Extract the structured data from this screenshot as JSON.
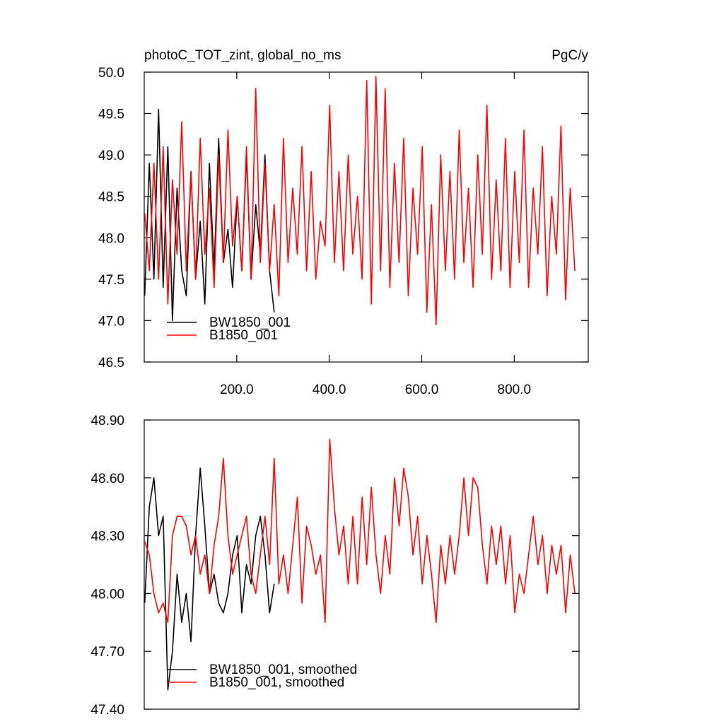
{
  "chart_data": [
    {
      "type": "line",
      "title": "photoC_TOT_zint, global_no_ms",
      "units_label": "PgC/y",
      "xlim": [
        0,
        960
      ],
      "ylim": [
        46.5,
        50
      ],
      "xticks": [
        {
          "value": 200,
          "label": "200.0"
        },
        {
          "value": 400,
          "label": "400.0"
        },
        {
          "value": 600,
          "label": "600.0"
        },
        {
          "value": 800,
          "label": "800.0"
        }
      ],
      "yticks": [
        {
          "value": 46.5,
          "label": "46.5"
        },
        {
          "value": 47,
          "label": "47.0"
        },
        47.5,
        {
          "value": 48,
          "label": "48.0"
        },
        48.5,
        {
          "value": 49,
          "label": "49.0"
        },
        49.5,
        {
          "value": 50,
          "label": "50.0"
        }
      ],
      "grid": false,
      "legend": "lower left",
      "series": [
        {
          "name": "BW1850_001",
          "color": "#000000",
          "x": [
            1,
            11,
            21,
            31,
            41,
            51,
            61,
            71,
            81,
            91,
            101,
            111,
            121,
            131,
            141,
            151,
            161,
            171,
            181,
            191,
            201,
            211,
            221,
            231,
            241,
            251,
            261,
            271,
            281
          ],
          "values": [
            47.3,
            48.9,
            47.5,
            49.55,
            47.4,
            49.1,
            47.0,
            48.6,
            47.6,
            47.3,
            48.8,
            47.5,
            48.2,
            47.2,
            48.9,
            47.6,
            49.2,
            47.7,
            48.1,
            47.4,
            48.5,
            47.6,
            49.0,
            47.5,
            48.4,
            47.8,
            49.0,
            47.6,
            47.1
          ]
        },
        {
          "name": "B1850_001",
          "color": "#ff0000",
          "x": [
            1,
            11,
            21,
            31,
            41,
            51,
            61,
            71,
            81,
            91,
            101,
            111,
            121,
            131,
            141,
            151,
            161,
            171,
            181,
            191,
            201,
            211,
            221,
            231,
            241,
            251,
            261,
            271,
            281,
            291,
            301,
            311,
            321,
            331,
            341,
            351,
            361,
            371,
            381,
            391,
            401,
            411,
            421,
            431,
            441,
            451,
            461,
            471,
            481,
            491,
            501,
            511,
            521,
            531,
            541,
            551,
            561,
            571,
            581,
            591,
            601,
            611,
            621,
            631,
            641,
            651,
            661,
            671,
            681,
            691,
            701,
            711,
            721,
            731,
            741,
            751,
            761,
            771,
            781,
            791,
            801,
            811,
            821,
            831,
            841,
            851,
            861,
            871,
            881,
            891,
            901,
            911,
            921,
            931
          ],
          "values": [
            48.3,
            47.6,
            48.9,
            47.5,
            49.1,
            47.2,
            48.7,
            47.8,
            49.4,
            47.6,
            48.8,
            47.5,
            49.2,
            47.8,
            48.6,
            47.4,
            49.0,
            47.7,
            49.3,
            47.9,
            48.5,
            47.6,
            49.1,
            47.5,
            49.8,
            47.7,
            48.9,
            47.6,
            48.4,
            47.3,
            49.2,
            47.7,
            48.6,
            47.8,
            49.1,
            47.6,
            48.8,
            47.5,
            48.2,
            47.9,
            49.6,
            47.7,
            48.8,
            47.6,
            49.0,
            47.8,
            48.5,
            47.5,
            49.9,
            47.2,
            49.95,
            47.6,
            49.8,
            47.4,
            48.9,
            47.7,
            49.2,
            47.3,
            48.6,
            47.8,
            49.1,
            47.1,
            48.4,
            46.95,
            49.0,
            47.6,
            48.8,
            47.5,
            49.3,
            47.7,
            48.6,
            47.4,
            49.0,
            47.8,
            49.6,
            47.5,
            48.7,
            47.6,
            49.2,
            47.4,
            48.8,
            47.7,
            49.3,
            47.4,
            48.6,
            47.8,
            49.1,
            47.3,
            48.5,
            47.8,
            49.35,
            47.25,
            48.6,
            47.6
          ]
        }
      ]
    },
    {
      "type": "line",
      "xlim": [
        0,
        940
      ],
      "ylim": [
        47.4,
        48.9
      ],
      "yticks": [
        {
          "value": 47.4,
          "label": "47.40"
        },
        {
          "value": 47.7,
          "label": "47.70"
        },
        {
          "value": 48,
          "label": "48.00"
        },
        {
          "value": 48.3,
          "label": "48.30"
        },
        {
          "value": 48.6,
          "label": "48.60"
        },
        {
          "value": 48.9,
          "label": "48.90"
        }
      ],
      "grid": false,
      "legend": "lower left",
      "series": [
        {
          "name": "BW1850_001, smoothed",
          "color": "#000000",
          "x": [
            1,
            11,
            21,
            31,
            41,
            51,
            61,
            71,
            81,
            91,
            101,
            111,
            121,
            131,
            141,
            151,
            161,
            171,
            181,
            191,
            201,
            211,
            221,
            231,
            241,
            251,
            261,
            271,
            281
          ],
          "values": [
            47.95,
            48.45,
            48.6,
            48.3,
            48.4,
            47.5,
            47.7,
            48.1,
            47.85,
            48.0,
            47.75,
            48.3,
            48.65,
            48.35,
            48.0,
            48.1,
            47.95,
            47.9,
            48.0,
            48.2,
            48.3,
            47.9,
            48.15,
            48.05,
            48.3,
            48.4,
            48.2,
            47.9,
            48.05
          ]
        },
        {
          "name": "B1850_001, smoothed",
          "color": "#ff0000",
          "x": [
            1,
            11,
            21,
            31,
            41,
            51,
            61,
            71,
            81,
            91,
            101,
            111,
            121,
            131,
            141,
            151,
            161,
            171,
            181,
            191,
            201,
            211,
            221,
            231,
            241,
            251,
            261,
            271,
            281,
            291,
            301,
            311,
            321,
            331,
            341,
            351,
            361,
            371,
            381,
            391,
            401,
            411,
            421,
            431,
            441,
            451,
            461,
            471,
            481,
            491,
            501,
            511,
            521,
            531,
            541,
            551,
            561,
            571,
            581,
            591,
            601,
            611,
            621,
            631,
            641,
            651,
            661,
            671,
            681,
            691,
            701,
            711,
            721,
            731,
            741,
            751,
            761,
            771,
            781,
            791,
            801,
            811,
            821,
            831,
            841,
            851,
            861,
            871,
            881,
            891,
            901,
            911,
            921,
            931
          ],
          "values": [
            48.27,
            48.2,
            48.0,
            47.9,
            47.95,
            47.85,
            48.3,
            48.4,
            48.4,
            48.35,
            48.2,
            48.3,
            48.1,
            48.2,
            48.0,
            48.25,
            48.4,
            48.7,
            48.3,
            48.1,
            48.2,
            48.3,
            48.4,
            48.1,
            48.0,
            48.2,
            48.4,
            48.15,
            48.7,
            48.05,
            48.2,
            48.0,
            48.25,
            48.5,
            47.95,
            48.35,
            48.25,
            48.1,
            48.2,
            47.85,
            48.8,
            48.45,
            48.2,
            48.35,
            48.05,
            48.4,
            48.05,
            48.5,
            48.15,
            48.55,
            48.2,
            48.0,
            48.3,
            48.1,
            48.6,
            48.35,
            48.65,
            48.5,
            48.2,
            48.4,
            48.05,
            48.3,
            48.1,
            47.85,
            48.25,
            48.05,
            48.3,
            48.1,
            48.3,
            48.6,
            48.3,
            48.6,
            48.55,
            48.25,
            48.05,
            48.35,
            48.15,
            48.35,
            48.05,
            48.3,
            47.9,
            48.1,
            48.0,
            48.2,
            48.4,
            48.15,
            48.3,
            48.0,
            48.25,
            48.1,
            48.25,
            47.9,
            48.2,
            48.0
          ]
        }
      ]
    }
  ]
}
